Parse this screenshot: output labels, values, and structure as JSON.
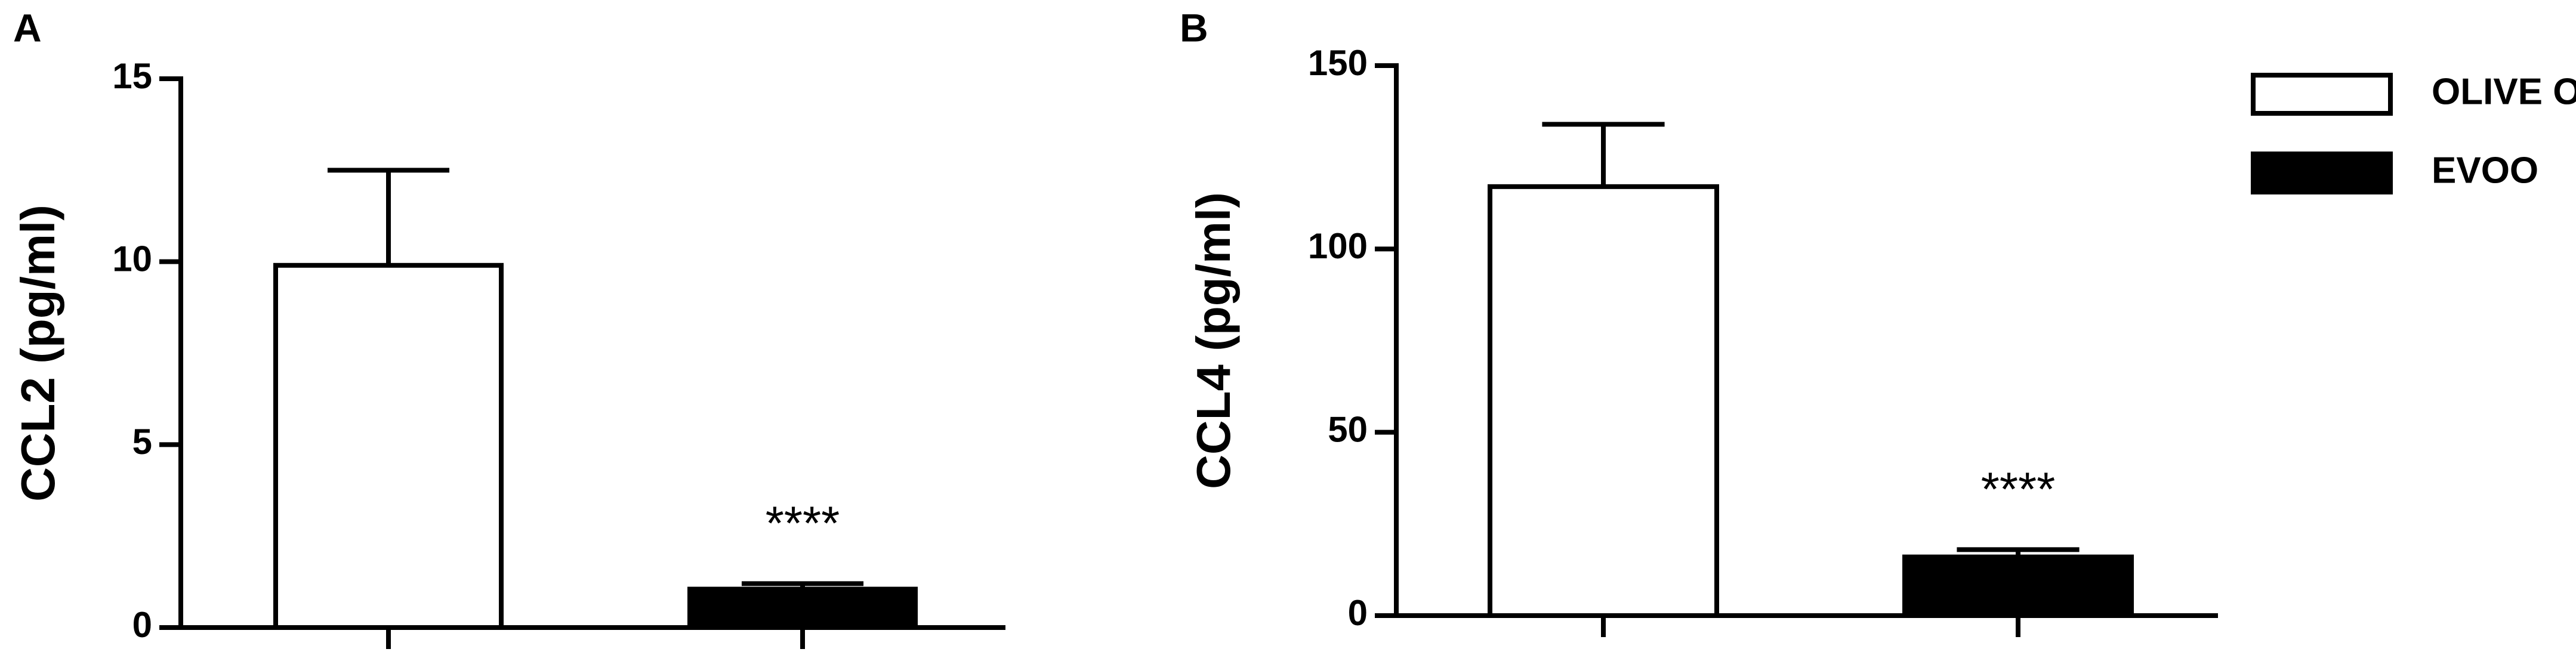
{
  "chart_data": [
    {
      "type": "bar",
      "panel_label": "A",
      "y_label": "CCL2 (pg/ml)",
      "categories": [
        null,
        null
      ],
      "values": [
        9.9,
        1.05
      ],
      "errors": [
        2.6,
        0.15
      ],
      "colors": [
        "#ffffff",
        "#000000"
      ],
      "ylim": [
        0,
        15
      ],
      "yticks": [
        0,
        5,
        10,
        15
      ],
      "annotations": [
        {
          "text": "****",
          "category": 1
        }
      ]
    },
    {
      "type": "bar",
      "panel_label": "B",
      "y_label": "CCL4 (pg/ml)",
      "categories": [
        null,
        null
      ],
      "values": [
        117,
        16
      ],
      "errors": [
        17,
        2
      ],
      "colors": [
        "#ffffff",
        "#000000"
      ],
      "ylim": [
        0,
        150
      ],
      "yticks": [
        0,
        50,
        100,
        150
      ],
      "annotations": [
        {
          "text": "****",
          "category": 1
        }
      ],
      "legend": {
        "position": "upper right",
        "labels": [
          "OLIVE OIL",
          "EVOO"
        ]
      }
    }
  ]
}
